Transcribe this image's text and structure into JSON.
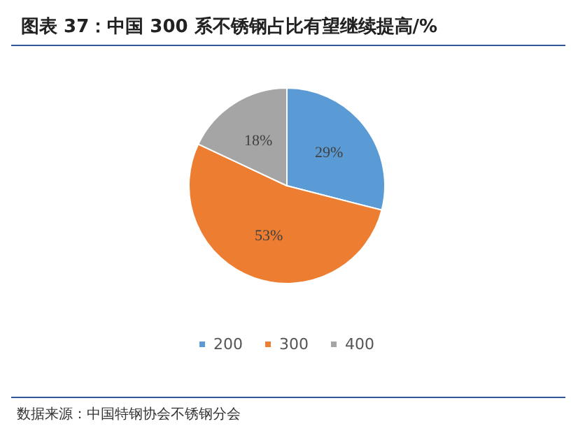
{
  "chart_data": {
    "type": "pie",
    "title": "图表 37：中国 300 系不锈钢占比有望继续提高/%",
    "categories": [
      "200",
      "300",
      "400"
    ],
    "values": [
      29,
      53,
      18
    ],
    "colors": [
      "#5b9bd5",
      "#ed7d31",
      "#a5a5a5"
    ],
    "value_labels": [
      "29%",
      "53%",
      "18%"
    ],
    "legend": "bottom",
    "annotations": [
      "数据来源：中国特钢协会不锈钢分会"
    ]
  }
}
